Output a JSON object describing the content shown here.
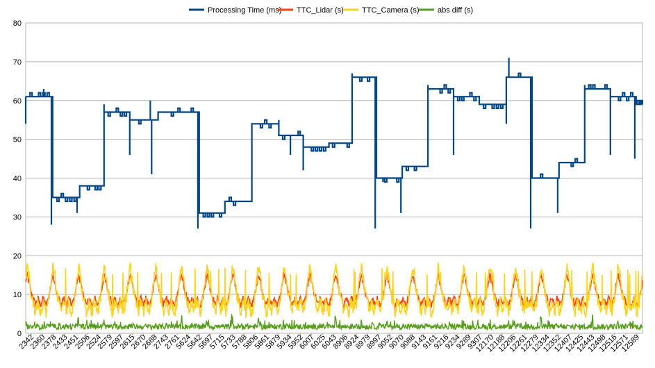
{
  "chart_data": {
    "type": "line",
    "legend_position": "top",
    "grid": "horizontal",
    "ylim": [
      0,
      80
    ],
    "y_ticks": [
      0,
      10,
      20,
      30,
      40,
      50,
      60,
      70,
      80
    ],
    "x_tick_labels": [
      "2342",
      "2360",
      "2378",
      "2433",
      "2451",
      "2506",
      "2524",
      "2579",
      "2597",
      "2615",
      "2670",
      "2688",
      "2743",
      "2761",
      "5624",
      "5642",
      "5697",
      "5715",
      "5733",
      "5788",
      "5806",
      "5861",
      "5879",
      "5934",
      "5952",
      "6007",
      "6025",
      "6043",
      "8906",
      "8924",
      "8979",
      "8997",
      "9052",
      "9070",
      "9088",
      "9143",
      "9161",
      "9216",
      "9234",
      "9289",
      "9307",
      "12170",
      "12188",
      "12206",
      "12261",
      "12279",
      "12334",
      "12352",
      "12407",
      "12425",
      "12443",
      "12498",
      "12516",
      "12571",
      "12589"
    ],
    "series": [
      {
        "name": "Processing Time (ms)",
        "color": "#004586",
        "style": "step",
        "levels": [
          [
            0.0,
            61
          ],
          [
            1.0,
            61
          ],
          [
            1.05,
            35
          ],
          [
            2.05,
            35
          ],
          [
            2.1,
            38
          ],
          [
            3.0,
            38
          ],
          [
            3.05,
            57
          ],
          [
            4.0,
            57
          ],
          [
            4.05,
            55
          ],
          [
            5.1,
            55
          ],
          [
            5.15,
            57
          ],
          [
            6.7,
            57
          ],
          [
            6.75,
            31
          ],
          [
            7.7,
            31
          ],
          [
            7.75,
            34
          ],
          [
            8.75,
            34
          ],
          [
            8.8,
            54
          ],
          [
            9.8,
            54
          ],
          [
            9.85,
            51
          ],
          [
            10.75,
            51
          ],
          [
            10.8,
            48
          ],
          [
            11.75,
            48
          ],
          [
            11.8,
            49
          ],
          [
            12.65,
            49
          ],
          [
            12.7,
            66
          ],
          [
            13.6,
            66
          ],
          [
            13.65,
            40
          ],
          [
            14.6,
            40
          ],
          [
            14.65,
            43
          ],
          [
            15.6,
            43
          ],
          [
            15.65,
            63
          ],
          [
            16.6,
            63
          ],
          [
            16.65,
            61
          ],
          [
            17.6,
            61
          ],
          [
            17.65,
            59
          ],
          [
            18.65,
            59
          ],
          [
            18.7,
            66
          ],
          [
            19.65,
            66
          ],
          [
            19.7,
            40
          ],
          [
            20.7,
            40
          ],
          [
            20.75,
            44
          ],
          [
            21.7,
            44
          ],
          [
            21.75,
            63
          ],
          [
            22.7,
            63
          ],
          [
            22.75,
            61
          ],
          [
            23.7,
            61
          ],
          [
            23.75,
            59
          ],
          [
            24.0,
            59
          ]
        ],
        "spikes": [
          [
            0.0,
            54
          ],
          [
            0.7,
            63
          ],
          [
            1.0,
            28
          ],
          [
            2.0,
            31
          ],
          [
            3.05,
            59
          ],
          [
            4.05,
            46
          ],
          [
            4.85,
            60
          ],
          [
            4.9,
            41
          ],
          [
            6.7,
            27
          ],
          [
            8.8,
            39
          ],
          [
            9.85,
            55
          ],
          [
            10.3,
            46
          ],
          [
            10.8,
            42
          ],
          [
            12.7,
            67
          ],
          [
            13.6,
            27
          ],
          [
            13.9,
            39
          ],
          [
            14.6,
            31
          ],
          [
            15.65,
            64
          ],
          [
            16.65,
            46
          ],
          [
            17.65,
            60
          ],
          [
            18.7,
            54
          ],
          [
            18.8,
            71
          ],
          [
            19.65,
            27
          ],
          [
            20.7,
            31
          ],
          [
            21.75,
            64
          ],
          [
            22.75,
            46
          ],
          [
            23.7,
            45
          ]
        ]
      },
      {
        "name": "TTC_Lidar (s)",
        "color": "#ff420e",
        "style": "cyclic",
        "cycles": 24,
        "peak": 15,
        "trough": 7
      },
      {
        "name": "TTC_Camera (s)",
        "color": "#ffd320",
        "style": "cyclic",
        "cycles": 24,
        "peak": 17,
        "trough": 5
      },
      {
        "name": "abs diff (s)",
        "color": "#579d1c",
        "style": "noise",
        "cycles": 24,
        "peak": 5,
        "base": 1
      }
    ]
  }
}
